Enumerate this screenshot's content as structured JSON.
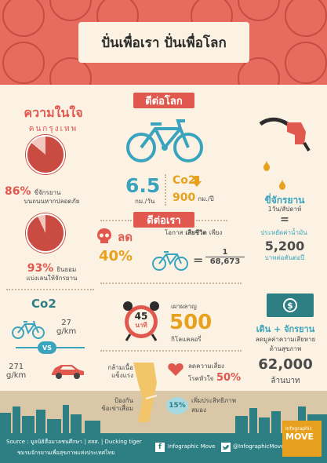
{
  "title": "ปั่นเพื่อเรา ปั่นเพื่อโลก",
  "sections": {
    "world": "ดีต่อโลก",
    "us": "ดีต่อเรา"
  },
  "left": {
    "heading": "ความในใจ",
    "subheading": "คนกรุงเทพ",
    "stat1_value": "86%",
    "stat1_text1": "ขี่จักรยาน",
    "stat1_text2": "บนถนนหากปลอดภัย",
    "stat1_pct": 86,
    "stat2_value": "93%",
    "stat2_text1": "ยินยอม",
    "stat2_text2": "แบ่งเลนให้จักรยาน",
    "stat2_pct": 93,
    "co2_label": "Co2",
    "bike_value": "27",
    "bike_unit": "g/km",
    "vs": "VS",
    "car_value": "271",
    "car_unit": "g/km"
  },
  "world": {
    "km_value": "6.5",
    "km_unit": "กม./วัน",
    "co2_label": "Co2",
    "co2_value": "900",
    "co2_unit": "กม./ปี"
  },
  "right": {
    "fuel_text1": "ขี่จักรยาน",
    "fuel_text2": "1วัน/สัปดาห์",
    "equals": "=",
    "save_text": "ประหยัดค่าน้ำมัน",
    "save_value": "5,200",
    "save_unit": "บาทต่อคันต่อปี",
    "walk_text": "เดิน + จักรยาน",
    "walk_sub1": "ลดมูลค่าความเสียหาย",
    "walk_sub2": "ด้านสุขภาพ",
    "walk_value": "62,000",
    "walk_unit": "ล้านบาท"
  },
  "us": {
    "reduce_label": "ลด",
    "reduce_value": "40%",
    "chance_text": "โอกาส",
    "chance_bold": "เสียชีวิต",
    "chance_suffix": "เพียง",
    "fraction_num": "1",
    "fraction_den": "68,673",
    "clock_num": "45",
    "clock_unit": "นาที",
    "burn_label": "เผาผลาญ",
    "burn_value": "500",
    "burn_unit": "กิโลแคลอรี่",
    "muscle1": "กล้ามเนื้อ",
    "muscle2": "แข็งแรง",
    "joint1": "ป้องกัน",
    "joint2": "ข้อเข่าเสื่อม",
    "heart1": "ลดความเสี่ยง",
    "heart2": "โรคหัวใจ",
    "heart_value": "50%",
    "brain_value": "15%",
    "brain1": "เพิ่มประสิทธิภาพ",
    "brain2": "สมอง"
  },
  "footer": {
    "source1": "Source : มูลนิธิสื่อมวลชนศึกษา | สสส. | Ducking tiger",
    "source2": "ชมรมจักรยานเพื่อสุขภาพแห่งประเทศไทย",
    "facebook": "Infographic Move",
    "twitter": "@InfographicMove",
    "brand1": "Infographic",
    "brand2": "MOVE"
  },
  "colors": {
    "red": "#e0584e",
    "teal": "#2d7f83",
    "blue": "#3aa3bd",
    "yellow": "#e8a11e",
    "cream": "#fbf2e3"
  }
}
